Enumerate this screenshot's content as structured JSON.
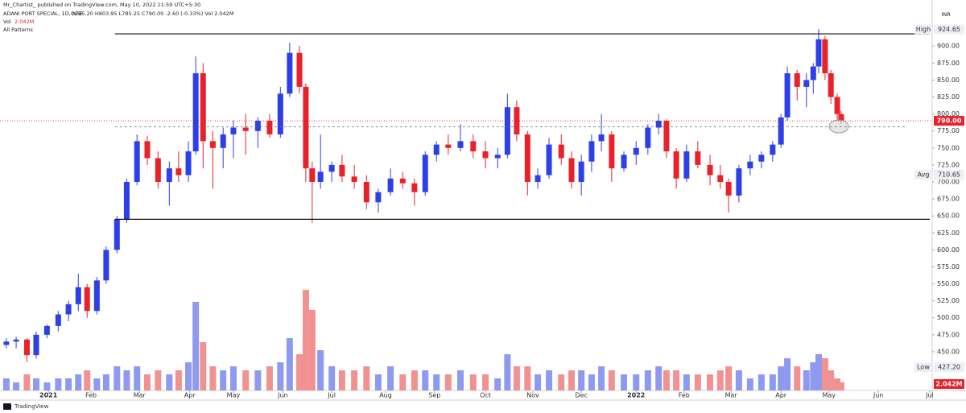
{
  "chart_data": {
    "type": "candlestick",
    "attribution": "Mr_Chartist_ published on TradingView.com, May 10, 2022 11:59 UTC+5:30",
    "title": "ADANI PORT SPECIAL, 1D, NSE",
    "legend_ohlc": "O795.20 H803.95 L785.25 C790.00 -2.60 (-0.33%) Vol 2.042M",
    "volume_name": "Vol",
    "volume_legend": "2.042M",
    "indicator": "All Patterns",
    "currency": "INR",
    "brand": "TradingView",
    "up_color": "#2c3fe8",
    "down_color": "#e8212b",
    "volume_up_color": "#8d9af0",
    "volume_down_color": "#f29191",
    "xlim": [
      -0.99,
      18.06
    ],
    "ylim": [
      393,
      956
    ],
    "vlim": [
      0,
      30
    ],
    "xticks": [
      {
        "value": 0,
        "label": "2021"
      },
      {
        "value": 0.87,
        "label": "Feb"
      },
      {
        "value": 1.86,
        "label": "Mar"
      },
      {
        "value": 2.89,
        "label": "Apr"
      },
      {
        "value": 3.78,
        "label": "May"
      },
      {
        "value": 4.79,
        "label": "Jun"
      },
      {
        "value": 5.79,
        "label": "Jul"
      },
      {
        "value": 6.89,
        "label": "Aug"
      },
      {
        "value": 7.89,
        "label": "Sep"
      },
      {
        "value": 8.93,
        "label": "Oct"
      },
      {
        "value": 9.9,
        "label": "Nov"
      },
      {
        "value": 10.89,
        "label": "Dec"
      },
      {
        "value": 12.01,
        "label": "2022"
      },
      {
        "value": 12.99,
        "label": "Feb"
      },
      {
        "value": 13.95,
        "label": "Mar"
      },
      {
        "value": 14.97,
        "label": "Apr"
      },
      {
        "value": 15.95,
        "label": "May"
      },
      {
        "value": 16.96,
        "label": "Jun"
      },
      {
        "value": 18.01,
        "label": "Jul"
      }
    ],
    "yticks": [
      {
        "value": 450,
        "label": "450.00"
      },
      {
        "value": 475,
        "label": "475.00"
      },
      {
        "value": 500,
        "label": "500.00"
      },
      {
        "value": 525,
        "label": "525.00"
      },
      {
        "value": 550,
        "label": "550.00"
      },
      {
        "value": 575,
        "label": "575.00"
      },
      {
        "value": 600,
        "label": "600.00"
      },
      {
        "value": 625,
        "label": "625.00"
      },
      {
        "value": 650,
        "label": "650.00"
      },
      {
        "value": 675,
        "label": "675.00"
      },
      {
        "value": 700,
        "label": "700.00"
      },
      {
        "value": 725,
        "label": "725.00"
      },
      {
        "value": 750,
        "label": "750.00"
      },
      {
        "value": 775,
        "label": "775.00"
      },
      {
        "value": 800,
        "label": "800.00"
      },
      {
        "value": 825,
        "label": "825.00"
      },
      {
        "value": 850,
        "label": "850.00"
      },
      {
        "value": 875,
        "label": "875.00"
      },
      {
        "value": 900,
        "label": "900.00"
      }
    ],
    "x": [
      -0.86,
      -0.66,
      -0.44,
      -0.25,
      -0.03,
      0.2,
      0.41,
      0.61,
      0.79,
      0.99,
      1.18,
      1.4,
      1.6,
      1.81,
      2.02,
      2.24,
      2.47,
      2.66,
      2.86,
      3.01,
      3.16,
      3.36,
      3.57,
      3.78,
      4.03,
      4.28,
      4.52,
      4.74,
      4.93,
      5.13,
      5.26,
      5.39,
      5.56,
      5.79,
      6.0,
      6.25,
      6.5,
      6.74,
      6.99,
      7.24,
      7.48,
      7.7,
      7.93,
      8.17,
      8.42,
      8.68,
      8.93,
      9.18,
      9.38,
      9.57,
      9.79,
      10.0,
      10.23,
      10.48,
      10.69,
      10.89,
      11.1,
      11.3,
      11.51,
      11.76,
      12.01,
      12.25,
      12.47,
      12.63,
      12.83,
      13.04,
      13.27,
      13.52,
      13.73,
      13.9,
      14.11,
      14.34,
      14.57,
      14.8,
      14.97,
      15.1,
      15.3,
      15.49,
      15.63,
      15.74,
      15.87,
      15.99,
      16.12,
      16.2
    ],
    "open": [
      460,
      465,
      468,
      445,
      475,
      488,
      505,
      520,
      545,
      510,
      555,
      600,
      645,
      700,
      760,
      735,
      700,
      720,
      710,
      745,
      860,
      760,
      750,
      770,
      780,
      775,
      790,
      770,
      830,
      890,
      840,
      720,
      700,
      715,
      725,
      708,
      700,
      670,
      685,
      705,
      698,
      685,
      740,
      755,
      750,
      760,
      745,
      735,
      740,
      810,
      770,
      700,
      710,
      755,
      735,
      700,
      730,
      760,
      770,
      720,
      740,
      750,
      780,
      790,
      745,
      705,
      745,
      725,
      710,
      700,
      680,
      720,
      730,
      740,
      755,
      795,
      860,
      840,
      850,
      870,
      910,
      860,
      825,
      800
    ],
    "high": [
      470,
      472,
      470,
      480,
      490,
      510,
      525,
      565,
      550,
      560,
      605,
      650,
      705,
      770,
      768,
      745,
      730,
      745,
      760,
      885,
      875,
      775,
      780,
      790,
      800,
      795,
      800,
      840,
      905,
      900,
      845,
      730,
      770,
      730,
      740,
      725,
      710,
      690,
      720,
      715,
      705,
      745,
      760,
      770,
      785,
      770,
      760,
      750,
      830,
      820,
      775,
      720,
      765,
      770,
      745,
      740,
      770,
      800,
      775,
      745,
      760,
      785,
      800,
      792,
      750,
      755,
      760,
      740,
      725,
      705,
      725,
      740,
      745,
      760,
      800,
      870,
      865,
      860,
      875,
      925,
      915,
      865,
      830,
      805
    ],
    "low": [
      455,
      455,
      435,
      440,
      470,
      480,
      495,
      510,
      500,
      505,
      550,
      595,
      640,
      695,
      725,
      690,
      665,
      700,
      700,
      740,
      720,
      690,
      720,
      735,
      740,
      750,
      765,
      765,
      825,
      830,
      700,
      640,
      690,
      700,
      700,
      690,
      660,
      655,
      680,
      690,
      665,
      680,
      730,
      740,
      745,
      735,
      720,
      720,
      735,
      760,
      680,
      690,
      705,
      725,
      690,
      680,
      715,
      745,
      700,
      715,
      725,
      740,
      770,
      735,
      690,
      700,
      720,
      695,
      690,
      655,
      670,
      710,
      720,
      730,
      750,
      790,
      820,
      810,
      830,
      860,
      850,
      815,
      790,
      785
    ],
    "close": [
      465,
      468,
      445,
      475,
      488,
      505,
      520,
      545,
      510,
      555,
      600,
      645,
      700,
      760,
      735,
      700,
      720,
      710,
      745,
      860,
      760,
      750,
      770,
      780,
      775,
      790,
      770,
      830,
      890,
      840,
      720,
      700,
      715,
      725,
      708,
      700,
      670,
      685,
      705,
      698,
      685,
      740,
      755,
      750,
      760,
      745,
      735,
      740,
      810,
      770,
      700,
      710,
      755,
      735,
      700,
      730,
      760,
      770,
      720,
      740,
      750,
      780,
      790,
      745,
      705,
      745,
      725,
      710,
      700,
      680,
      720,
      730,
      740,
      755,
      795,
      860,
      840,
      850,
      870,
      910,
      860,
      825,
      800,
      790
    ],
    "volume": [
      3,
      2,
      4,
      3,
      2,
      3,
      3,
      4,
      5,
      3,
      4,
      6,
      5,
      6,
      4,
      5,
      4,
      5,
      7,
      22,
      12,
      6,
      5,
      6,
      5,
      5,
      6,
      7,
      13,
      9,
      25,
      20,
      10,
      6,
      5,
      5,
      6,
      4,
      6,
      4,
      5,
      5,
      4,
      4,
      5,
      4,
      4,
      3,
      9,
      6,
      6,
      4,
      5,
      4,
      5,
      5,
      4,
      6,
      5,
      4,
      4,
      5,
      6,
      5,
      5,
      4,
      4,
      4,
      5,
      6,
      5,
      3,
      4,
      4,
      6,
      8,
      6,
      5,
      7,
      9,
      8,
      5,
      3,
      2.042
    ],
    "levels": [
      {
        "value": 918,
        "x": [
          1.36,
          18.01
        ],
        "style": "solid"
      },
      {
        "value": 645,
        "x": [
          1.36,
          18.01
        ],
        "style": "solid"
      },
      {
        "value": 781,
        "x": [
          1.36,
          17.52
        ],
        "style": "dashed"
      }
    ],
    "markers": [
      {
        "name": "High",
        "value": 924.65,
        "label": "924.65"
      },
      {
        "name": "Avg",
        "value": 710.65,
        "label": "710.65"
      },
      {
        "name": "Low",
        "value": 427.2,
        "label": "427.20"
      }
    ],
    "last_price": {
      "value": 790,
      "label": "790.00"
    }
  }
}
